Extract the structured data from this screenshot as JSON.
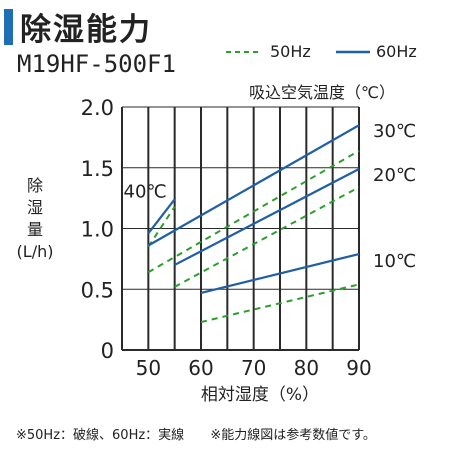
{
  "title": "除湿能力",
  "model": "M19HF-500F1",
  "intake_label": "吸込空気温度（℃）",
  "footnote": [
    "※50Hz：破線、60Hz：実線",
    "※能力線図は参考数値です。"
  ],
  "colors": {
    "line_50hz": "#2aa02a",
    "line_60hz": "#1f5ea8",
    "grid": "#2a2a2a",
    "title_bar": "#1f6fb5"
  },
  "chart_data": {
    "type": "line",
    "xlabel": "相対湿度（%）",
    "ylabel": [
      "除",
      "湿",
      "量",
      "(L/h)"
    ],
    "x_ticks": [
      50,
      60,
      70,
      80,
      90
    ],
    "y_ticks": [
      "0",
      "0.5",
      "1.0",
      "1.5",
      "2.0"
    ],
    "xlim": [
      45,
      90
    ],
    "ylim": [
      0,
      2.0
    ],
    "grid": true,
    "legend": [
      {
        "label": "50Hz",
        "style": "dashed",
        "color": "#2aa02a"
      },
      {
        "label": "60Hz",
        "style": "solid",
        "color": "#1f5ea8"
      }
    ],
    "series": [
      {
        "name": "40℃",
        "label_pos": "left",
        "freq": "60Hz",
        "points": [
          [
            50,
            0.96
          ],
          [
            55,
            1.24
          ]
        ]
      },
      {
        "name": "40℃",
        "freq": "50Hz",
        "points": [
          [
            50,
            0.85
          ],
          [
            55,
            1.18
          ]
        ]
      },
      {
        "name": "30℃",
        "label_pos": "right",
        "freq": "60Hz",
        "points": [
          [
            50,
            0.86
          ],
          [
            90,
            1.85
          ]
        ]
      },
      {
        "name": "30℃",
        "freq": "50Hz",
        "points": [
          [
            50,
            0.64
          ],
          [
            90,
            1.64
          ]
        ]
      },
      {
        "name": "20℃",
        "label_pos": "right",
        "freq": "60Hz",
        "points": [
          [
            55,
            0.7
          ],
          [
            90,
            1.49
          ]
        ]
      },
      {
        "name": "20℃",
        "freq": "50Hz",
        "points": [
          [
            55,
            0.52
          ],
          [
            90,
            1.34
          ]
        ]
      },
      {
        "name": "10℃",
        "label_pos": "right",
        "freq": "60Hz",
        "points": [
          [
            60,
            0.47
          ],
          [
            90,
            0.79
          ]
        ]
      },
      {
        "name": "10℃",
        "freq": "50Hz",
        "points": [
          [
            60,
            0.23
          ],
          [
            90,
            0.54
          ]
        ]
      }
    ],
    "temperature_labels": [
      "40℃",
      "30℃",
      "20℃",
      "10℃"
    ]
  }
}
